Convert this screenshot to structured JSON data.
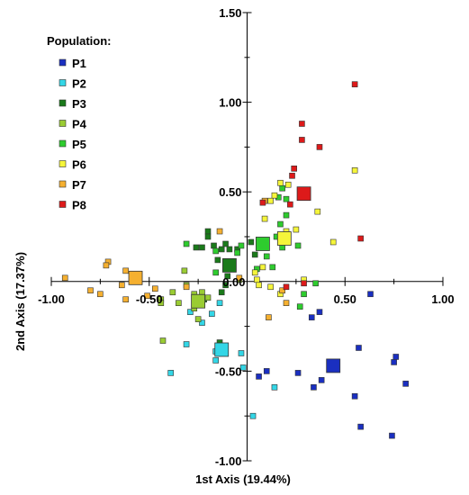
{
  "chart_data": {
    "type": "scatter",
    "xlabel": "1st Axis (19.44%)",
    "ylabel": "2nd Axis (17.37%)",
    "xlim": [
      -1.0,
      1.0
    ],
    "ylim": [
      -1.0,
      1.5
    ],
    "xticks": [
      -1.0,
      -0.5,
      0.5,
      1.0
    ],
    "yticks": [
      -1.0,
      -0.5,
      0.5,
      1.0,
      1.5
    ],
    "xtick_labels": [
      "-1.00",
      "-0.50",
      "0.50",
      "1.00"
    ],
    "ytick_labels": [
      "-1.00",
      "-0.50",
      "0.50",
      "1.00",
      "1.50"
    ],
    "origin_label": "0.00",
    "grid": false,
    "legend": {
      "title": "Population:",
      "placement": "top-left"
    },
    "series": [
      {
        "name": "P1",
        "color": "#1a2fc0",
        "points": [
          [
            0.63,
            -0.07
          ],
          [
            0.37,
            -0.17
          ],
          [
            0.33,
            -0.2
          ],
          [
            0.57,
            -0.37
          ],
          [
            0.76,
            -0.42
          ],
          [
            0.75,
            -0.45
          ],
          [
            0.81,
            -0.57
          ],
          [
            0.55,
            -0.64
          ],
          [
            0.34,
            -0.59
          ],
          [
            0.38,
            -0.55
          ],
          [
            0.26,
            -0.51
          ],
          [
            0.1,
            -0.5
          ],
          [
            0.06,
            -0.53
          ],
          [
            0.58,
            -0.81
          ],
          [
            0.74,
            -0.86
          ]
        ],
        "centroid": [
          0.44,
          -0.47
        ]
      },
      {
        "name": "P2",
        "color": "#33d6e6",
        "points": [
          [
            -0.14,
            -0.12
          ],
          [
            -0.18,
            -0.18
          ],
          [
            -0.23,
            -0.23
          ],
          [
            -0.31,
            -0.35
          ],
          [
            -0.16,
            -0.39
          ],
          [
            -0.03,
            -0.4
          ],
          [
            -0.16,
            -0.44
          ],
          [
            -0.39,
            -0.51
          ],
          [
            -0.02,
            -0.48
          ],
          [
            0.14,
            -0.59
          ],
          [
            0.03,
            -0.75
          ],
          [
            -0.27,
            -0.08
          ],
          [
            -0.29,
            -0.17
          ]
        ],
        "centroid": [
          -0.13,
          -0.38
        ]
      },
      {
        "name": "P3",
        "color": "#1a7a1a",
        "points": [
          [
            -0.2,
            0.28
          ],
          [
            -0.2,
            0.25
          ],
          [
            -0.17,
            0.2
          ],
          [
            -0.11,
            0.21
          ],
          [
            -0.13,
            0.18
          ],
          [
            -0.09,
            0.18
          ],
          [
            -0.26,
            0.19
          ],
          [
            -0.23,
            0.19
          ],
          [
            -0.15,
            0.12
          ],
          [
            -0.1,
            0.03
          ],
          [
            -0.11,
            -0.02
          ],
          [
            -0.13,
            -0.06
          ],
          [
            -0.14,
            -0.34
          ],
          [
            -0.22,
            -0.1
          ],
          [
            0.02,
            0.22
          ],
          [
            0.04,
            0.15
          ],
          [
            -0.05,
            0.18
          ]
        ],
        "centroid": [
          -0.09,
          0.09
        ]
      },
      {
        "name": "P4",
        "color": "#9acc33",
        "points": [
          [
            -0.31,
            -0.02
          ],
          [
            -0.27,
            -0.07
          ],
          [
            -0.2,
            -0.09
          ],
          [
            -0.23,
            -0.06
          ],
          [
            -0.27,
            -0.15
          ],
          [
            -0.35,
            -0.12
          ],
          [
            -0.38,
            -0.06
          ],
          [
            -0.44,
            -0.1
          ],
          [
            -0.44,
            -0.12
          ],
          [
            -0.43,
            -0.33
          ],
          [
            -0.25,
            -0.21
          ],
          [
            -0.04,
            0.01
          ],
          [
            -0.32,
            0.06
          ]
        ],
        "centroid": [
          -0.25,
          -0.11
        ]
      },
      {
        "name": "P5",
        "color": "#2ecc2e",
        "points": [
          [
            0.16,
            0.47
          ],
          [
            0.18,
            0.52
          ],
          [
            0.2,
            0.46
          ],
          [
            0.17,
            0.32
          ],
          [
            0.15,
            0.25
          ],
          [
            0.2,
            0.37
          ],
          [
            0.26,
            0.2
          ],
          [
            0.18,
            0.19
          ],
          [
            0.1,
            0.14
          ],
          [
            0.13,
            0.08
          ],
          [
            0.05,
            0.07
          ],
          [
            -0.03,
            0.2
          ],
          [
            -0.05,
            0.16
          ],
          [
            -0.16,
            0.17
          ],
          [
            -0.31,
            0.21
          ],
          [
            -0.16,
            0.05
          ],
          [
            0.29,
            -0.07
          ],
          [
            0.35,
            -0.01
          ],
          [
            0.27,
            -0.14
          ]
        ],
        "centroid": [
          0.08,
          0.21
        ]
      },
      {
        "name": "P6",
        "color": "#f5f53a",
        "points": [
          [
            0.09,
            0.35
          ],
          [
            0.12,
            0.45
          ],
          [
            0.17,
            0.55
          ],
          [
            0.21,
            0.54
          ],
          [
            0.2,
            0.28
          ],
          [
            0.25,
            0.29
          ],
          [
            0.36,
            0.39
          ],
          [
            0.44,
            0.22
          ],
          [
            0.55,
            0.62
          ],
          [
            0.14,
            0.48
          ],
          [
            0.05,
            0.01
          ],
          [
            0.08,
            0.08
          ],
          [
            0.04,
            0.05
          ],
          [
            0.17,
            -0.07
          ],
          [
            0.12,
            -0.03
          ],
          [
            0.29,
            0.01
          ],
          [
            0.06,
            -0.02
          ]
        ],
        "centroid": [
          0.19,
          0.24
        ]
      },
      {
        "name": "P7",
        "color": "#f5b030",
        "points": [
          [
            -0.93,
            0.02
          ],
          [
            -0.71,
            0.11
          ],
          [
            -0.72,
            0.09
          ],
          [
            -0.62,
            0.06
          ],
          [
            -0.64,
            -0.02
          ],
          [
            -0.75,
            -0.07
          ],
          [
            -0.62,
            -0.1
          ],
          [
            -0.51,
            -0.08
          ],
          [
            -0.8,
            -0.05
          ],
          [
            -0.47,
            -0.04
          ],
          [
            -0.31,
            -0.03
          ],
          [
            0.09,
            0.45
          ],
          [
            0.18,
            -0.05
          ],
          [
            0.2,
            -0.12
          ],
          [
            0.11,
            -0.2
          ],
          [
            -0.14,
            0.28
          ],
          [
            -0.04,
            0.02
          ]
        ],
        "centroid": [
          -0.57,
          0.02
        ]
      },
      {
        "name": "P8",
        "color": "#dd1a1a",
        "points": [
          [
            0.55,
            1.1
          ],
          [
            0.28,
            0.88
          ],
          [
            0.28,
            0.79
          ],
          [
            0.37,
            0.75
          ],
          [
            0.23,
            0.59
          ],
          [
            0.24,
            0.63
          ],
          [
            0.08,
            0.44
          ],
          [
            0.22,
            0.43
          ],
          [
            0.58,
            0.24
          ],
          [
            0.29,
            -0.01
          ],
          [
            0.2,
            -0.03
          ]
        ],
        "centroid": [
          0.29,
          0.49
        ]
      }
    ]
  }
}
